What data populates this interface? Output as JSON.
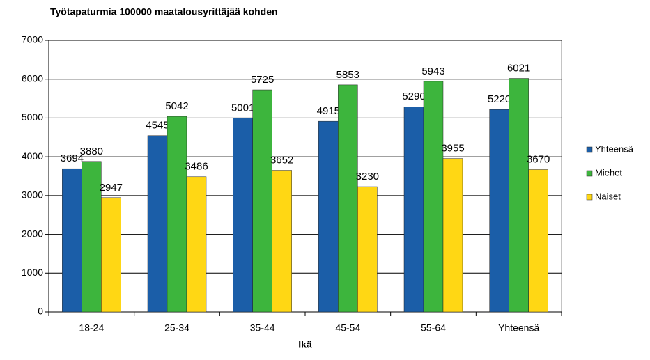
{
  "chart_data": {
    "type": "bar",
    "title": "Työtapaturmia 100000 maatalousyrittäjää kohden",
    "x_label": "Ikä",
    "categories": [
      "18-24",
      "25-34",
      "35-44",
      "45-54",
      "55-64",
      "Yhteensä"
    ],
    "series": [
      {
        "name": "Yhteensä",
        "color": "#1b5ea8",
        "values": [
          3694,
          4545,
          5001,
          4915,
          5290,
          5220
        ]
      },
      {
        "name": "Miehet",
        "color": "#3db53d",
        "values": [
          3880,
          5042,
          5725,
          5853,
          5943,
          6021
        ]
      },
      {
        "name": "Naiset",
        "color": "#ffd714",
        "values": [
          2947,
          3486,
          3652,
          3230,
          3955,
          3670
        ]
      }
    ],
    "ylim": [
      0,
      7000
    ],
    "yticks": [
      0,
      1000,
      2000,
      3000,
      4000,
      5000,
      6000,
      7000
    ],
    "grid": true,
    "legend": "right"
  }
}
